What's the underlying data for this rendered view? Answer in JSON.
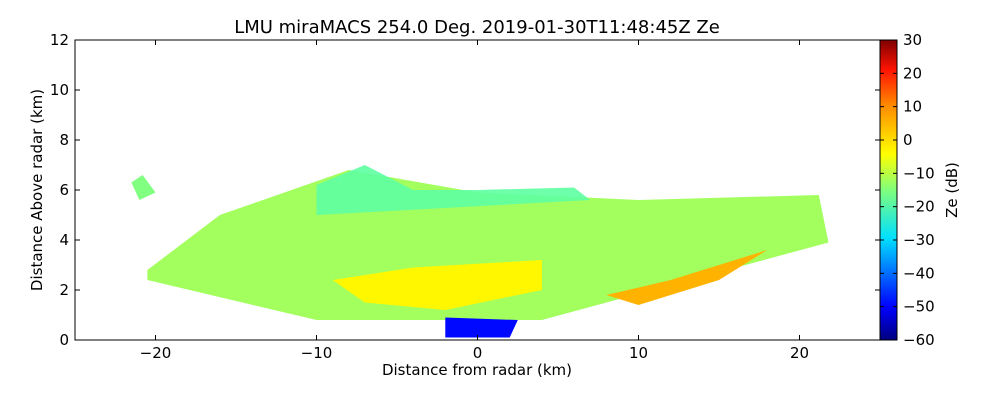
{
  "chart_data": {
    "type": "heatmap",
    "title": "LMU miraMACS 254.0 Deg. 2019-01-30T11:48:45Z  Ze",
    "xlabel": "Distance from radar (km)",
    "ylabel": "Distance Above radar  (km)",
    "xlim": [
      -25,
      25
    ],
    "ylim": [
      0,
      12
    ],
    "x_ticks": [
      -20,
      -10,
      0,
      10,
      20
    ],
    "x_tick_labels": [
      "−20",
      "−10",
      "0",
      "10",
      "20"
    ],
    "y_ticks": [
      0,
      2,
      4,
      6,
      8,
      10,
      12
    ],
    "y_tick_labels": [
      "0",
      "2",
      "4",
      "6",
      "8",
      "10",
      "12"
    ],
    "grid": false,
    "colorbar": {
      "label": "Ze (dB)",
      "range": [
        -60,
        30
      ],
      "ticks": [
        30,
        20,
        10,
        0,
        -10,
        -20,
        -30,
        -40,
        -50,
        -60
      ],
      "tick_labels": [
        "30",
        "20",
        "10",
        "0",
        "−10",
        "−20",
        "−30",
        "−40",
        "−50",
        "−60"
      ],
      "colormap": "jet"
    },
    "echo_regions": [
      {
        "name": "main cloud body",
        "outline_km": [
          [
            -20.5,
            2.8
          ],
          [
            -16,
            5.0
          ],
          [
            -8,
            6.8
          ],
          [
            0,
            5.9
          ],
          [
            10,
            5.6
          ],
          [
            21.2,
            5.8
          ],
          [
            21.8,
            3.9
          ],
          [
            4,
            0.8
          ],
          [
            -10,
            0.8
          ],
          [
            -20.5,
            2.4
          ]
        ],
        "ze_dB": -12
      },
      {
        "name": "upper cloud top",
        "outline_km": [
          [
            -10,
            6.2
          ],
          [
            -7,
            7.0
          ],
          [
            -4,
            6.0
          ],
          [
            0,
            6.0
          ],
          [
            6,
            6.1
          ],
          [
            7,
            5.6
          ],
          [
            -10,
            5.0
          ]
        ],
        "ze_dB": -18
      },
      {
        "name": "enhanced layer",
        "outline_km": [
          [
            -7,
            1.5
          ],
          [
            -2,
            1.2
          ],
          [
            4,
            2.0
          ],
          [
            4,
            3.2
          ],
          [
            -4,
            2.9
          ],
          [
            -9,
            2.4
          ]
        ],
        "ze_dB": -3
      },
      {
        "name": "lower right band",
        "outline_km": [
          [
            8,
            1.8
          ],
          [
            12,
            2.4
          ],
          [
            18,
            3.6
          ],
          [
            15,
            2.4
          ],
          [
            10,
            1.4
          ]
        ],
        "ze_dB": 3
      },
      {
        "name": "isolated cell",
        "outline_km": [
          [
            -21.5,
            6.3
          ],
          [
            -20.8,
            6.6
          ],
          [
            -20,
            5.9
          ],
          [
            -21,
            5.6
          ]
        ],
        "ze_dB": -15
      },
      {
        "name": "near-radar weak echo",
        "outline_km": [
          [
            -2,
            0.1
          ],
          [
            2,
            0.1
          ],
          [
            2.5,
            0.8
          ],
          [
            -2,
            0.9
          ]
        ],
        "ze_dB": -48
      }
    ]
  }
}
